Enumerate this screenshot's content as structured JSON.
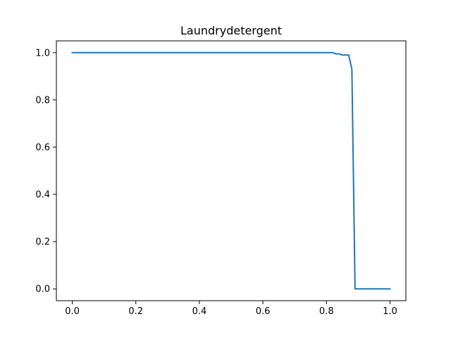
{
  "chart_data": {
    "type": "line",
    "title": "Laundrydetergent",
    "xlabel": "",
    "ylabel": "",
    "xlim": [
      -0.05,
      1.05
    ],
    "ylim": [
      -0.05,
      1.05
    ],
    "xticks": [
      0.0,
      0.2,
      0.4,
      0.6,
      0.8,
      1.0
    ],
    "xtick_labels": [
      "0.0",
      "0.2",
      "0.4",
      "0.6",
      "0.8",
      "1.0"
    ],
    "yticks": [
      0.0,
      0.2,
      0.4,
      0.6,
      0.8,
      1.0
    ],
    "ytick_labels": [
      "0.0",
      "0.2",
      "0.4",
      "0.6",
      "0.8",
      "1.0"
    ],
    "grid": false,
    "series": [
      {
        "color": "#1f77b4",
        "x": [
          0.0,
          0.82,
          0.83,
          0.84,
          0.85,
          0.87,
          0.88,
          0.89,
          0.9,
          1.0
        ],
        "y": [
          1.0,
          1.0,
          0.995,
          0.995,
          0.99,
          0.99,
          0.93,
          0.0,
          0.0,
          0.0
        ]
      }
    ]
  }
}
